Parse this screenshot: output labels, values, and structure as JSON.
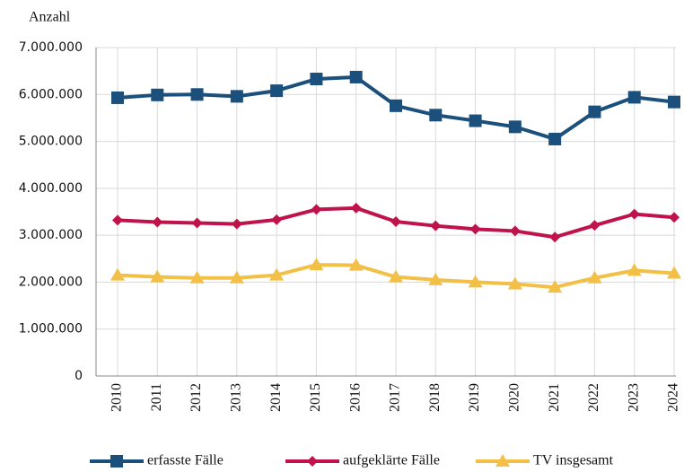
{
  "chart_data": {
    "type": "line",
    "y_label": "Anzahl",
    "categories": [
      "2010",
      "2011",
      "2012",
      "2013",
      "2014",
      "2015",
      "2016",
      "2017",
      "2018",
      "2019",
      "2020",
      "2021",
      "2022",
      "2023",
      "2024"
    ],
    "series": [
      {
        "name": "erfasste Fälle",
        "color": "#1b4f7c",
        "marker": "square",
        "values": [
          5930000,
          5990000,
          6000000,
          5960000,
          6080000,
          6330000,
          6370000,
          5760000,
          5560000,
          5440000,
          5310000,
          5050000,
          5630000,
          5940000,
          5840000
        ]
      },
      {
        "name": "aufgeklärte Fälle",
        "color": "#c1134b",
        "marker": "diamond",
        "values": [
          3320000,
          3280000,
          3260000,
          3240000,
          3330000,
          3550000,
          3580000,
          3290000,
          3200000,
          3130000,
          3090000,
          2960000,
          3210000,
          3450000,
          3380000
        ]
      },
      {
        "name": "TV insgesamt",
        "color": "#f2c046",
        "marker": "triangle",
        "values": [
          2150000,
          2110000,
          2090000,
          2090000,
          2150000,
          2370000,
          2360000,
          2110000,
          2050000,
          2000000,
          1960000,
          1890000,
          2090000,
          2250000,
          2190000
        ]
      }
    ],
    "ylim": [
      0,
      7000000
    ],
    "yticks": [
      0,
      {
        "value": 1000000,
        "label": "1.000.000"
      },
      {
        "value": 2000000,
        "label": "2.000.000"
      },
      {
        "value": 3000000,
        "label": "3.000.000"
      },
      {
        "value": 4000000,
        "label": "4.000.000"
      },
      {
        "value": 5000000,
        "label": "5.000.000"
      },
      {
        "value": 6000000,
        "label": "6.000.000"
      },
      {
        "value": 7000000,
        "label": "7.000.000"
      }
    ],
    "grid": true,
    "legend": "bottom"
  }
}
